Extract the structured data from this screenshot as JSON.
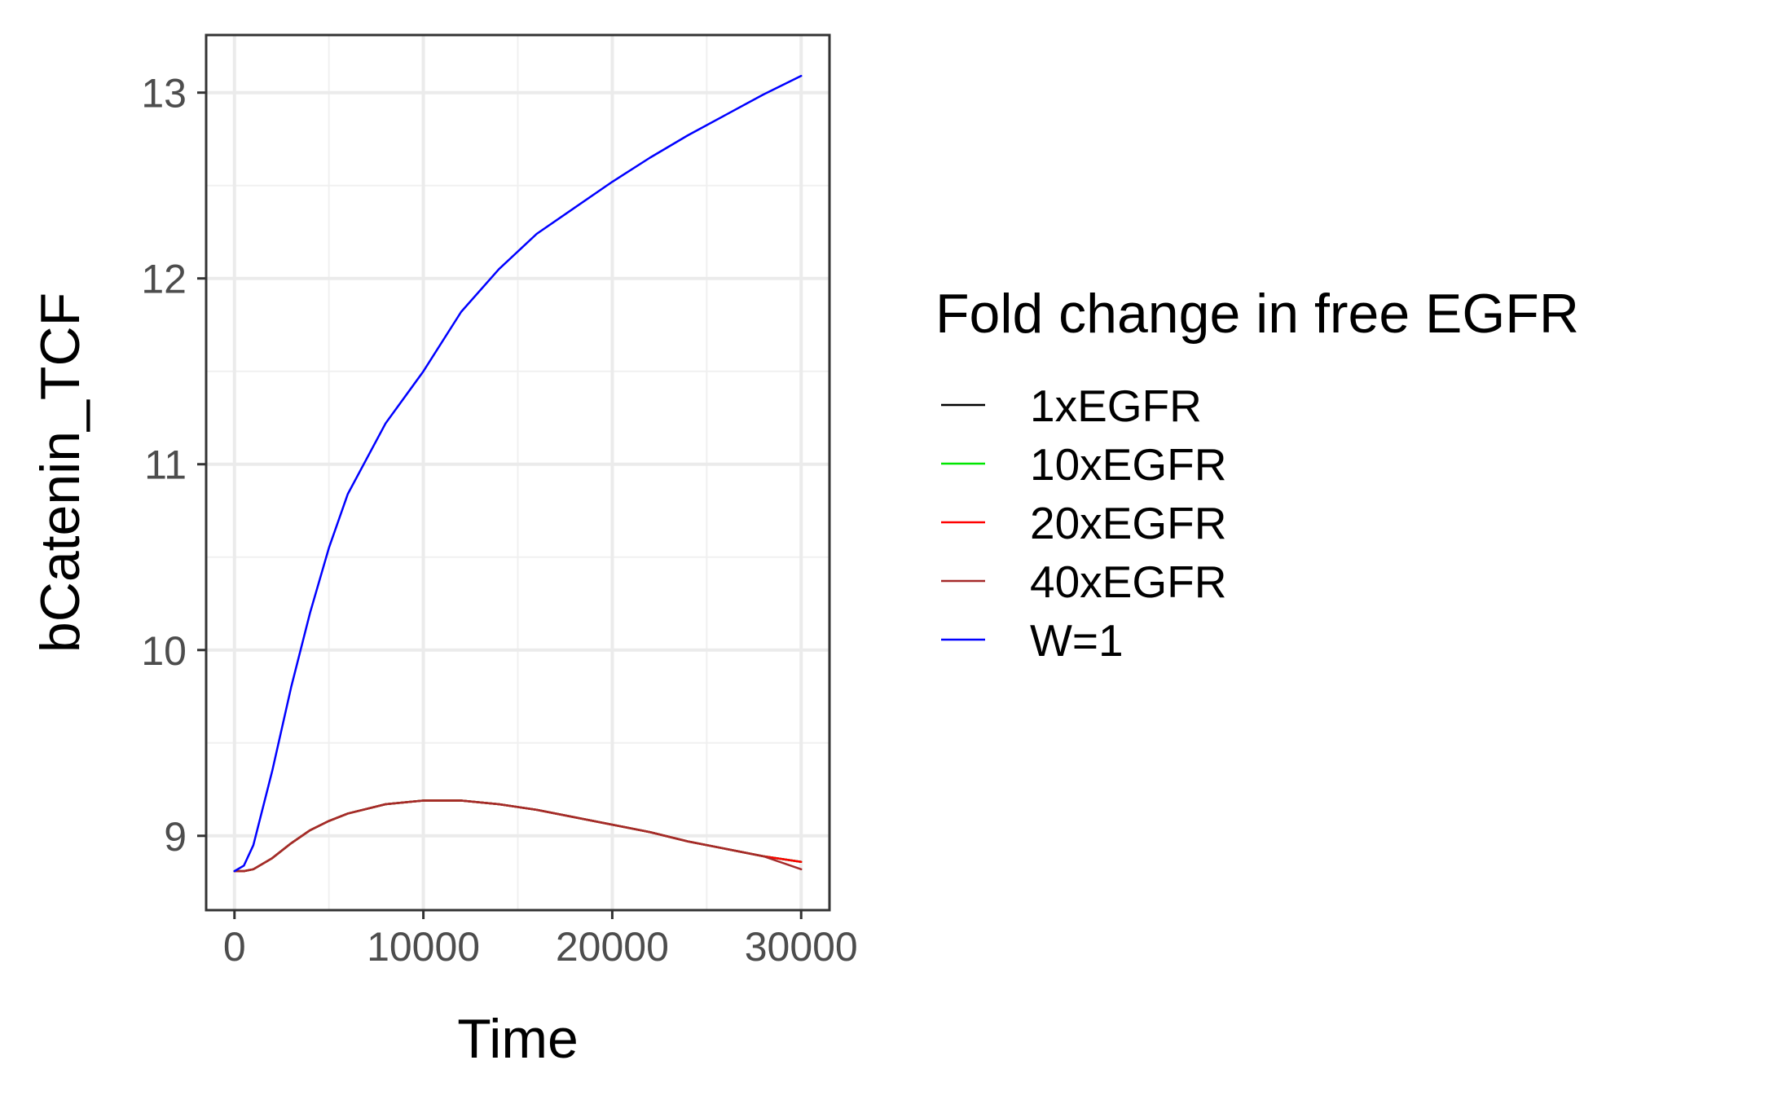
{
  "chart_data": {
    "type": "line",
    "xlabel": "Time",
    "ylabel": "bCatenin_TCF",
    "xlim": [
      -1500,
      31500
    ],
    "ylim": [
      8.6,
      13.31
    ],
    "x_ticks": [
      0,
      10000,
      20000,
      30000
    ],
    "x_tick_labels": [
      "0",
      "10000",
      "20000",
      "30000"
    ],
    "y_ticks": [
      9,
      10,
      11,
      12,
      13
    ],
    "y_tick_labels": [
      "9",
      "10",
      "11",
      "12",
      "13"
    ],
    "grid": true,
    "legend": {
      "title": "Fold change in free EGFR",
      "placement": "right"
    },
    "x": [
      0,
      500,
      1000,
      2000,
      3000,
      4000,
      5000,
      6000,
      8000,
      10000,
      12000,
      14000,
      16000,
      18000,
      20000,
      22000,
      24000,
      26000,
      28000,
      30000
    ],
    "series": [
      {
        "name": "1xEGFR",
        "color": "#000000",
        "values": [
          8.81,
          8.81,
          8.82,
          8.88,
          8.96,
          9.03,
          9.08,
          9.12,
          9.17,
          9.19,
          9.19,
          9.17,
          9.14,
          9.1,
          9.06,
          9.02,
          8.97,
          8.93,
          8.89,
          8.86
        ]
      },
      {
        "name": "10xEGFR",
        "color": "#00e600",
        "values": [
          8.81,
          8.81,
          8.82,
          8.88,
          8.96,
          9.03,
          9.08,
          9.12,
          9.17,
          9.19,
          9.19,
          9.17,
          9.14,
          9.1,
          9.06,
          9.02,
          8.97,
          8.93,
          8.89,
          8.86
        ]
      },
      {
        "name": "20xEGFR",
        "color": "#ff0000",
        "values": [
          8.81,
          8.81,
          8.82,
          8.88,
          8.96,
          9.03,
          9.08,
          9.12,
          9.17,
          9.19,
          9.19,
          9.17,
          9.14,
          9.1,
          9.06,
          9.02,
          8.97,
          8.93,
          8.89,
          8.86
        ]
      },
      {
        "name": "40xEGFR",
        "color": "#a52a2a",
        "values": [
          8.81,
          8.81,
          8.82,
          8.88,
          8.96,
          9.03,
          9.08,
          9.12,
          9.17,
          9.19,
          9.19,
          9.17,
          9.14,
          9.1,
          9.06,
          9.02,
          8.97,
          8.93,
          8.89,
          8.82
        ]
      },
      {
        "name": "W=1",
        "color": "#0000ff",
        "values": [
          8.81,
          8.84,
          8.95,
          9.35,
          9.8,
          10.2,
          10.55,
          10.84,
          11.22,
          11.5,
          11.82,
          12.05,
          12.24,
          12.38,
          12.52,
          12.65,
          12.77,
          12.88,
          12.99,
          13.09
        ]
      }
    ]
  }
}
